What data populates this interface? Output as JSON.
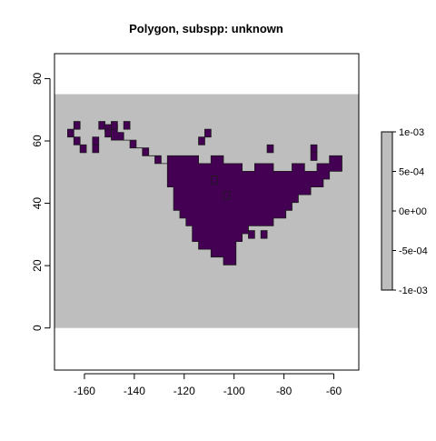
{
  "chart_data": {
    "type": "heatmap",
    "title": "Polygon, subspp: unknown",
    "xlabel": "",
    "ylabel": "",
    "xlim": [
      -172,
      -50
    ],
    "ylim": [
      -13.5,
      88
    ],
    "raster_extent": {
      "xmin": -172,
      "xmax": -50,
      "ymin": 0,
      "ymax": 75
    },
    "x_ticks": [
      -160,
      -140,
      -120,
      -100,
      -80,
      -60
    ],
    "x_tick_labels": [
      "-160",
      "-140",
      "-120",
      "-100",
      "-80",
      "-60"
    ],
    "y_ticks": [
      0,
      20,
      40,
      60,
      80
    ],
    "y_tick_labels": [
      "0",
      "20",
      "40",
      "60",
      "80"
    ],
    "cell_size": 2.5,
    "colors": {
      "background": "#bebebe",
      "range": "#440154",
      "outline": "#1a1a1a",
      "axis": "#000000"
    },
    "legend": {
      "position": "right",
      "min": -0.001,
      "max": 0.001,
      "color": "#bebebe",
      "ticks": [
        0.001,
        0.0005,
        0,
        -0.0005,
        -0.001
      ],
      "tick_labels": [
        "1e-03",
        "5e-04",
        "0e+00",
        "-5e-04",
        "-1e-03"
      ]
    },
    "range_cells": [
      {
        "lon": -163,
        "lat": 65
      },
      {
        "lon": -165.5,
        "lat": 62.5
      },
      {
        "lon": -163,
        "lat": 60
      },
      {
        "lon": -160.5,
        "lat": 57.5
      },
      {
        "lon": -153,
        "lat": 65
      },
      {
        "lon": -148,
        "lat": 65
      },
      {
        "lon": -143,
        "lat": 65
      },
      {
        "lon": -150.5,
        "lat": 62.5
      },
      {
        "lon": -155.5,
        "lat": 60
      },
      {
        "lon": -155.5,
        "lat": 57.5
      },
      {
        "lon": -110.5,
        "lat": 62.5
      },
      {
        "lon": -113,
        "lat": 60
      },
      {
        "lon": -85.5,
        "lat": 57.5
      },
      {
        "lon": -68,
        "lat": 57.5
      },
      {
        "lon": -68,
        "lat": 55
      },
      {
        "lon": -108,
        "lat": 47.5
      },
      {
        "lon": -103,
        "lat": 42.5
      },
      {
        "lon": -93,
        "lat": 30
      },
      {
        "lon": -88,
        "lat": 30
      }
    ],
    "range_polygon_lonlat": [
      [
        -149.25,
        65.25
      ],
      [
        -146.75,
        65.25
      ],
      [
        -146.75,
        62.75
      ],
      [
        -144.25,
        62.75
      ],
      [
        -144.25,
        60.25
      ],
      [
        -139.25,
        60.25
      ],
      [
        -139.25,
        57.75
      ],
      [
        -136.75,
        57.75
      ],
      [
        -136.75,
        55.25
      ],
      [
        -131.75,
        55.25
      ],
      [
        -131.75,
        52.75
      ],
      [
        -126.75,
        52.75
      ],
      [
        -126.75,
        55.25
      ],
      [
        -114.25,
        55.25
      ],
      [
        -114.25,
        52.75
      ],
      [
        -109.25,
        52.75
      ],
      [
        -109.25,
        55.25
      ],
      [
        -104.25,
        55.25
      ],
      [
        -104.25,
        52.75
      ],
      [
        -96.75,
        52.75
      ],
      [
        -96.75,
        50.25
      ],
      [
        -91.75,
        50.25
      ],
      [
        -91.75,
        52.75
      ],
      [
        -84.25,
        52.75
      ],
      [
        -84.25,
        50.25
      ],
      [
        -76.75,
        50.25
      ],
      [
        -76.75,
        52.75
      ],
      [
        -71.75,
        52.75
      ],
      [
        -71.75,
        50.25
      ],
      [
        -66.75,
        50.25
      ],
      [
        -66.75,
        52.75
      ],
      [
        -61.75,
        52.75
      ],
      [
        -61.75,
        55.25
      ],
      [
        -56.75,
        55.25
      ],
      [
        -56.75,
        50.25
      ],
      [
        -61.75,
        50.25
      ],
      [
        -61.75,
        47.75
      ],
      [
        -64.25,
        47.75
      ],
      [
        -64.25,
        45.25
      ],
      [
        -69.25,
        45.25
      ],
      [
        -69.25,
        42.75
      ],
      [
        -74.25,
        42.75
      ],
      [
        -74.25,
        40.25
      ],
      [
        -76.75,
        40.25
      ],
      [
        -76.75,
        37.75
      ],
      [
        -79.25,
        37.75
      ],
      [
        -79.25,
        35.25
      ],
      [
        -84.25,
        35.25
      ],
      [
        -84.25,
        32.75
      ],
      [
        -94.25,
        32.75
      ],
      [
        -94.25,
        30.25
      ],
      [
        -96.75,
        30.25
      ],
      [
        -96.75,
        27.75
      ],
      [
        -99.25,
        27.75
      ],
      [
        -99.25,
        20.25
      ],
      [
        -104.25,
        20.25
      ],
      [
        -104.25,
        22.75
      ],
      [
        -109.25,
        22.75
      ],
      [
        -109.25,
        25.25
      ],
      [
        -114.25,
        25.25
      ],
      [
        -114.25,
        27.75
      ],
      [
        -116.75,
        27.75
      ],
      [
        -116.75,
        32.75
      ],
      [
        -119.25,
        32.75
      ],
      [
        -119.25,
        35.25
      ],
      [
        -121.75,
        35.25
      ],
      [
        -121.75,
        37.75
      ],
      [
        -124.25,
        37.75
      ],
      [
        -124.25,
        45.25
      ],
      [
        -126.75,
        45.25
      ],
      [
        -126.75,
        52.75
      ],
      [
        -129.25,
        52.75
      ],
      [
        -129.25,
        55.25
      ],
      [
        -134.25,
        55.25
      ],
      [
        -134.25,
        57.75
      ],
      [
        -141.75,
        57.75
      ],
      [
        -141.75,
        60.25
      ],
      [
        -149.25,
        60.25
      ],
      [
        -149.25,
        62.75
      ],
      [
        -151.75,
        62.75
      ],
      [
        -151.75,
        65.25
      ]
    ]
  }
}
